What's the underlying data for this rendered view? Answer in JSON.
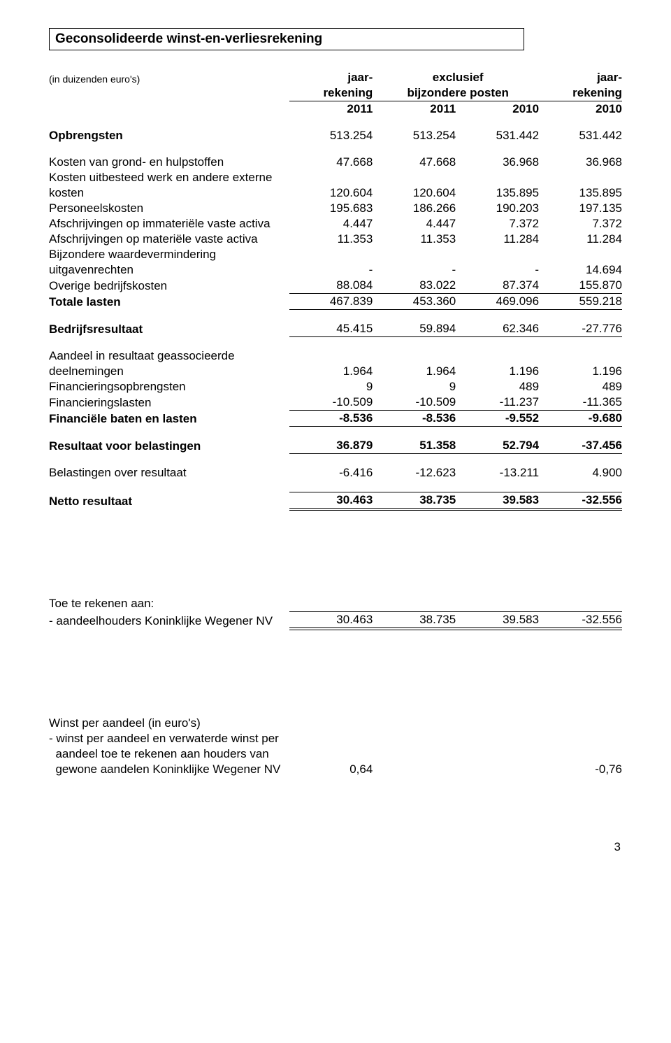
{
  "title": "Geconsolideerde winst-en-verliesrekening",
  "unitsNote": "(in duizenden euro's)",
  "colHeaders": {
    "c1a": "jaar-",
    "c1b": "rekening",
    "c1c": "2011",
    "c23a": "exclusief",
    "c23b": "bijzondere posten",
    "c2c": "2011",
    "c3c": "2010",
    "c4a": "jaar-",
    "c4b": "rekening",
    "c4c": "2010"
  },
  "rows": {
    "opbrengsten": {
      "label": "Opbrengsten",
      "v": [
        "513.254",
        "513.254",
        "531.442",
        "531.442"
      ]
    },
    "grond": {
      "label": "Kosten van grond- en hulpstoffen",
      "v": [
        "47.668",
        "47.668",
        "36.968",
        "36.968"
      ]
    },
    "uitbesteedA": {
      "label": "Kosten uitbesteed werk en andere externe"
    },
    "uitbesteedB": {
      "label": "kosten",
      "v": [
        "120.604",
        "120.604",
        "135.895",
        "135.895"
      ]
    },
    "personeel": {
      "label": "Personeelskosten",
      "v": [
        "195.683",
        "186.266",
        "190.203",
        "197.135"
      ]
    },
    "afschrImmat": {
      "label": "Afschrijvingen op immateriële vaste activa",
      "v": [
        "4.447",
        "4.447",
        "7.372",
        "7.372"
      ]
    },
    "afschrMat": {
      "label": "Afschrijvingen op materiële vaste activa",
      "v": [
        "11.353",
        "11.353",
        "11.284",
        "11.284"
      ]
    },
    "bijzA": {
      "label": "Bijzondere waardevermindering"
    },
    "bijzB": {
      "label": "uitgavenrechten",
      "v": [
        "-",
        "-",
        "-",
        "14.694"
      ]
    },
    "overige": {
      "label": "Overige bedrijfskosten",
      "v": [
        "88.084",
        "83.022",
        "87.374",
        "155.870"
      ]
    },
    "totaleLasten": {
      "label": "Totale lasten",
      "v": [
        "467.839",
        "453.360",
        "469.096",
        "559.218"
      ]
    },
    "bedrijfsres": {
      "label": "Bedrijfsresultaat",
      "v": [
        "45.415",
        "59.894",
        "62.346",
        "-27.776"
      ]
    },
    "aandeelA": {
      "label": "Aandeel in resultaat geassocieerde"
    },
    "aandeelB": {
      "label": "deelnemingen",
      "v": [
        "1.964",
        "1.964",
        "1.196",
        "1.196"
      ]
    },
    "finOpb": {
      "label": "Financieringsopbrengsten",
      "v": [
        "9",
        "9",
        "489",
        "489"
      ]
    },
    "finLast": {
      "label": "Financieringslasten",
      "v": [
        "-10.509",
        "-10.509",
        "-11.237",
        "-11.365"
      ]
    },
    "finBaten": {
      "label": "Financiële baten en lasten",
      "v": [
        "-8.536",
        "-8.536",
        "-9.552",
        "-9.680"
      ]
    },
    "resVoorBel": {
      "label": "Resultaat voor belastingen",
      "v": [
        "36.879",
        "51.358",
        "52.794",
        "-37.456"
      ]
    },
    "belastingen": {
      "label": "Belastingen over resultaat",
      "v": [
        "-6.416",
        "-12.623",
        "-13.211",
        "4.900"
      ]
    },
    "netto": {
      "label": "Netto resultaat",
      "v": [
        "30.463",
        "38.735",
        "39.583",
        "-32.556"
      ]
    },
    "toeRekenen": {
      "label": "Toe te rekenen aan:"
    },
    "aandeelhouders": {
      "label": "- aandeelhouders Koninklijke Wegener NV",
      "v": [
        "30.463",
        "38.735",
        "39.583",
        "-32.556"
      ]
    },
    "wpaHdr": {
      "label": "Winst per aandeel (in euro's)"
    },
    "wpaA": {
      "label": "- winst per aandeel en verwaterde winst per"
    },
    "wpaB": {
      "label": "  aandeel toe te rekenen aan houders van"
    },
    "wpaC": {
      "label": "  gewone aandelen Koninklijke Wegener NV",
      "v": [
        "0,64",
        "",
        "",
        "-0,76"
      ]
    }
  },
  "pageNumber": "3",
  "style": {
    "pageWidth": 960,
    "pageHeight": 1491,
    "bodyFontSize": 17,
    "smallFontSize": 14,
    "titleFontSize": 19,
    "textColor": "#000000",
    "background": "#ffffff",
    "borderColor": "#000000",
    "fontFamily": "Arial, Helvetica, sans-serif"
  }
}
